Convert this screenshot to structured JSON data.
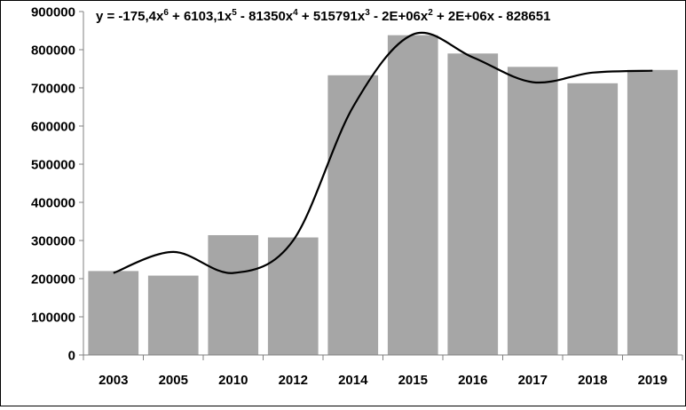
{
  "chart_data": {
    "type": "bar",
    "title": "",
    "xlabel": "",
    "ylabel": "",
    "categories": [
      "2003",
      "2005",
      "2010",
      "2012",
      "2014",
      "2015",
      "2016",
      "2017",
      "2018",
      "2019"
    ],
    "values": [
      220000,
      208000,
      314000,
      308000,
      733000,
      838000,
      790000,
      755000,
      712000,
      747000
    ],
    "ylim": [
      0,
      900000
    ],
    "yticks": [
      0,
      100000,
      200000,
      300000,
      400000,
      500000,
      600000,
      700000,
      800000,
      900000
    ],
    "ytick_labels": [
      "0",
      "100000",
      "200000",
      "300000",
      "400000",
      "500000",
      "600000",
      "700000",
      "800000",
      "900000"
    ],
    "grid": false,
    "bar_color": "#a6a6a6",
    "trendline": {
      "type": "polynomial",
      "order": 6,
      "color": "#000000",
      "equation": {
        "prefix": "y = -175,4x",
        "terms": [
          {
            "exp": "6",
            "text": " + 6103,1x"
          },
          {
            "exp": "5",
            "text": " - 81350x"
          },
          {
            "exp": "4",
            "text": " + 515791x"
          },
          {
            "exp": "3",
            "text": " - 2E+06x"
          },
          {
            "exp": "2",
            "text": " + 2E+06x - 828651"
          }
        ]
      },
      "values": [
        215000,
        270000,
        215000,
        300000,
        650000,
        840000,
        780000,
        715000,
        740000,
        745000
      ]
    }
  }
}
